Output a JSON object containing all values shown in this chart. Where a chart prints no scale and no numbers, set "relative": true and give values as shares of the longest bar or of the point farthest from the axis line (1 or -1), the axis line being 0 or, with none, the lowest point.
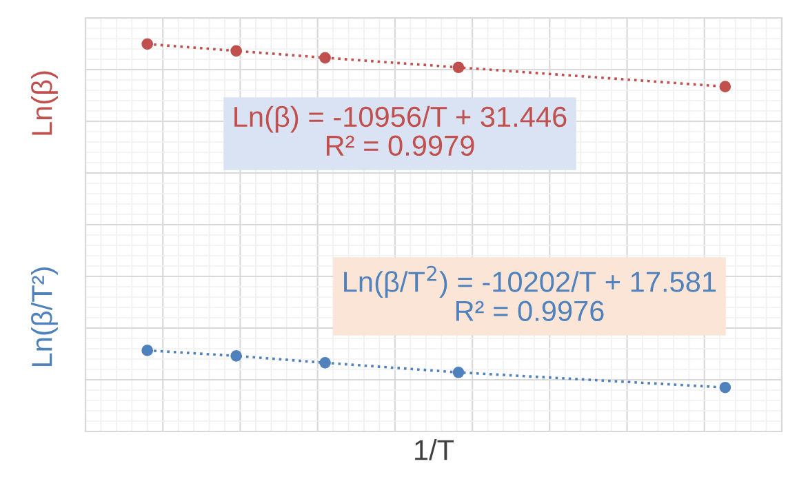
{
  "chart_data": {
    "type": "line",
    "relative": true,
    "xlabel": "1/T",
    "ylabel": "Ln(β)",
    "y2label": "Ln(β/T²)",
    "categories": [
      null,
      null,
      null,
      null,
      null,
      null,
      null,
      null,
      null,
      null,
      null,
      null,
      null,
      null
    ],
    "series": [
      {
        "color": "#c0504d",
        "values": [
          1,
          null,
          0.98,
          null,
          0.96,
          null,
          null,
          0.932,
          null,
          null,
          null,
          null,
          null,
          0.876
        ]
      },
      {
        "color": "#4f81bd",
        "values": [
          0.108,
          null,
          0.092,
          null,
          0.072,
          null,
          null,
          0.044,
          null,
          null,
          null,
          null,
          null,
          0
        ]
      }
    ],
    "annotations": [
      "Ln(β) = -10956/T + 31.446\nR² = 0.9979",
      "Ln(β/T$^{2}$) = -10202/T + 17.581\nR² = 0.9976"
    ],
    "marker": "circle",
    "line_style": "dotted",
    "grid": true,
    "tick_labels": false
  }
}
